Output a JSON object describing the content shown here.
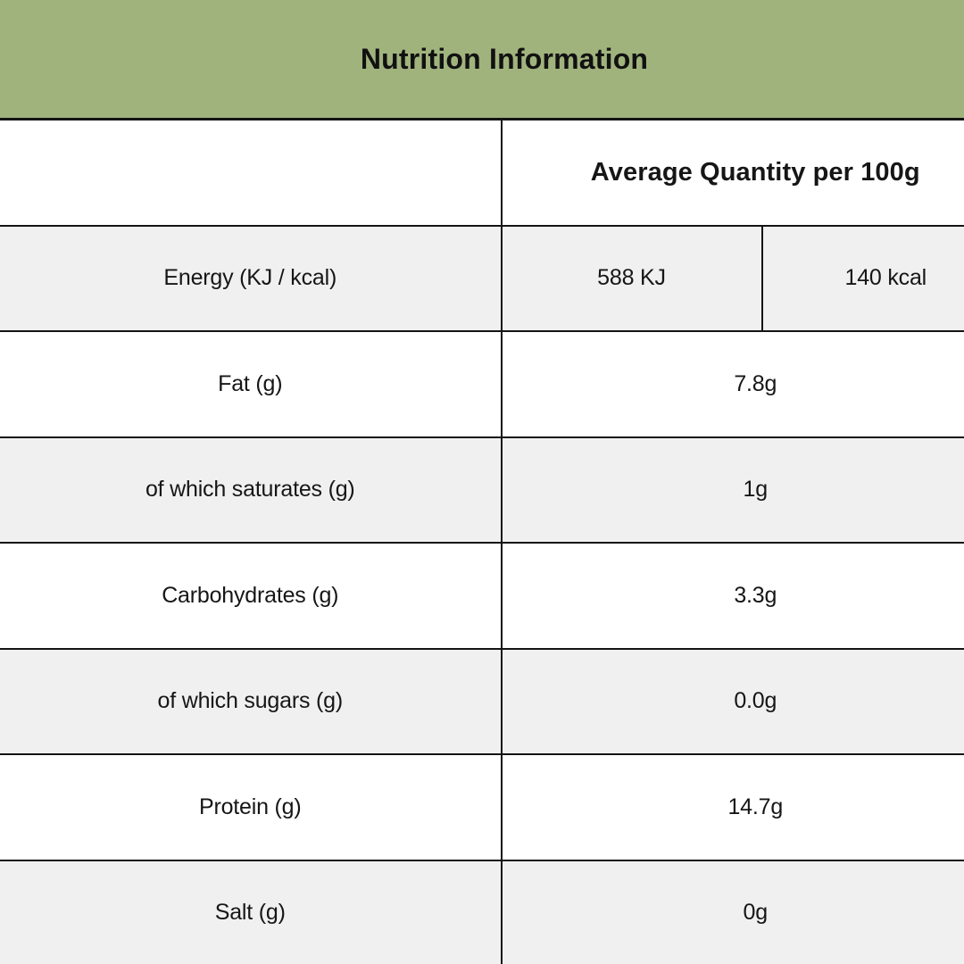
{
  "header": {
    "title": "Nutrition Information",
    "bg_color": "#a1b37d",
    "text_color": "#111111"
  },
  "table": {
    "column_header": "Average Quantity per 100g",
    "rows": [
      {
        "label": "Energy (KJ / kcal)",
        "value_kj": "588 KJ",
        "value_kcal": "140 kcal"
      },
      {
        "label": "Fat (g)",
        "value": "7.8g"
      },
      {
        "label": "of which saturates (g)",
        "value": "1g"
      },
      {
        "label": "Carbohydrates (g)",
        "value": "3.3g"
      },
      {
        "label": "of which sugars (g)",
        "value": "0.0g"
      },
      {
        "label": "Protein (g)",
        "value": "14.7g"
      },
      {
        "label": "Salt (g)",
        "value": "0g"
      }
    ],
    "colors": {
      "row_bg": "#ffffff",
      "row_alt_bg": "#f0f0f0",
      "border": "#141414"
    }
  }
}
